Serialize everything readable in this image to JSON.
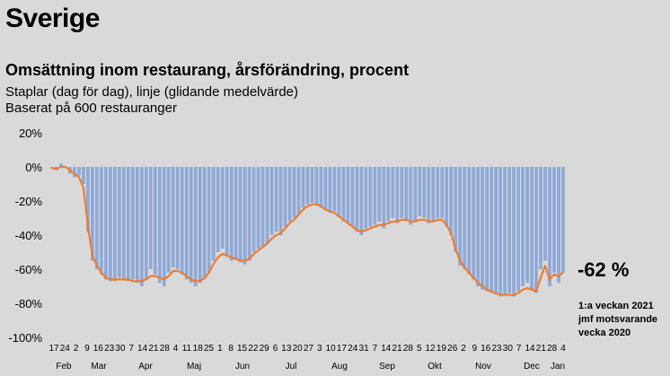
{
  "title": "Sverige",
  "subtitle": "Omsättning inom restaurang, årsförändring, procent",
  "notes": [
    "Staplar (dag för dag), linje (glidande medelvärde)",
    "Baserat på 600 restauranger"
  ],
  "callout": {
    "value": "-62 %",
    "lines": [
      "1:a veckan 2021",
      "jmf motsvarande",
      "vecka 2020"
    ]
  },
  "colors": {
    "bars": "#8fa9d9",
    "line": "#ed7d31",
    "background": "#d9d9d9"
  },
  "chart_data": {
    "type": "bar",
    "title": "Omsättning inom restaurang, årsförändring, procent",
    "ylim": [
      -100,
      20
    ],
    "yticks": [
      20,
      0,
      -20,
      -40,
      -60,
      -80,
      -100
    ],
    "ytick_labels": [
      "20%",
      "0%",
      "-20%",
      "-40%",
      "-60%",
      "-80%",
      "-100%"
    ],
    "grid": false,
    "x_day_labels": [
      "17",
      "24",
      "2",
      "9",
      "16",
      "23",
      "30",
      "7",
      "14",
      "21",
      "28",
      "4",
      "11",
      "18",
      "25",
      "1",
      "8",
      "15",
      "22",
      "29",
      "6",
      "13",
      "20",
      "27",
      "3",
      "10",
      "17",
      "24",
      "31",
      "7",
      "14",
      "21",
      "28",
      "5",
      "12",
      "19",
      "26",
      "2",
      "9",
      "16",
      "23",
      "30",
      "7",
      "14",
      "21",
      "28",
      "4"
    ],
    "x_month_labels": [
      "Feb",
      "Mar",
      "Apr",
      "Maj",
      "Jun",
      "Jul",
      "Aug",
      "Sep",
      "Okt",
      "Nov",
      "Dec",
      "Jan"
    ],
    "series": [
      {
        "name": "Staplar (dag för dag)",
        "style": "bar",
        "values": [
          -1,
          -2,
          2,
          0,
          -4,
          -6,
          -5,
          -10,
          -38,
          -55,
          -60,
          -63,
          -66,
          -67,
          -67,
          -65,
          -66,
          -67,
          -66,
          -68,
          -70,
          -66,
          -60,
          -63,
          -68,
          -70,
          -62,
          -59,
          -60,
          -63,
          -66,
          -68,
          -70,
          -68,
          -66,
          -62,
          -55,
          -50,
          -48,
          -52,
          -55,
          -54,
          -56,
          -57,
          -55,
          -50,
          -48,
          -47,
          -45,
          -40,
          -38,
          -40,
          -35,
          -32,
          -30,
          -28,
          -24,
          -22,
          -21,
          -22,
          -24,
          -25,
          -27,
          -26,
          -29,
          -32,
          -33,
          -35,
          -38,
          -40,
          -36,
          -35,
          -34,
          -32,
          -36,
          -32,
          -30,
          -33,
          -30,
          -31,
          -34,
          -32,
          -29,
          -30,
          -33,
          -32,
          -30,
          -30,
          -35,
          -40,
          -50,
          -58,
          -60,
          -63,
          -66,
          -70,
          -72,
          -73,
          -74,
          -75,
          -76,
          -75,
          -74,
          -76,
          -73,
          -70,
          -68,
          -72,
          -74,
          -60,
          -55,
          -70,
          -62,
          -68,
          -62
        ]
      },
      {
        "name": "linje (glidande medelvärde)",
        "style": "line",
        "values": [
          -1,
          -1,
          0,
          0,
          -2,
          -4,
          -6,
          -12,
          -35,
          -52,
          -58,
          -62,
          -65,
          -66,
          -66,
          -66,
          -66,
          -66,
          -67,
          -67,
          -67,
          -66,
          -64,
          -64,
          -65,
          -66,
          -64,
          -61,
          -61,
          -62,
          -64,
          -66,
          -67,
          -67,
          -65,
          -62,
          -57,
          -53,
          -51,
          -52,
          -53,
          -54,
          -55,
          -55,
          -54,
          -51,
          -49,
          -47,
          -45,
          -42,
          -40,
          -39,
          -36,
          -33,
          -31,
          -28,
          -25,
          -23,
          -22,
          -22,
          -23,
          -25,
          -26,
          -27,
          -29,
          -31,
          -33,
          -35,
          -37,
          -38,
          -37,
          -36,
          -35,
          -34,
          -34,
          -33,
          -32,
          -32,
          -31,
          -31,
          -32,
          -32,
          -31,
          -31,
          -32,
          -32,
          -31,
          -31,
          -34,
          -39,
          -48,
          -55,
          -59,
          -62,
          -65,
          -68,
          -70,
          -72,
          -73,
          -74,
          -75,
          -75,
          -75,
          -75,
          -74,
          -72,
          -71,
          -72,
          -73,
          -65,
          -58,
          -66,
          -63,
          -64,
          -62
        ]
      }
    ]
  }
}
